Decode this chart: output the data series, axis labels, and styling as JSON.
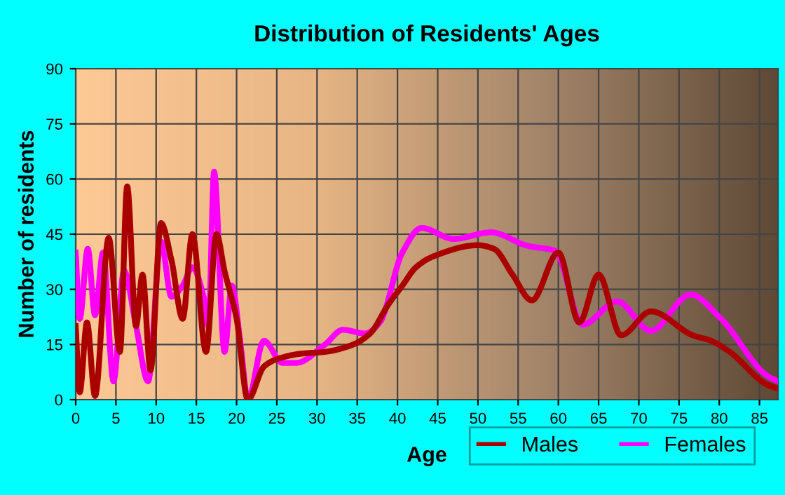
{
  "chart_data": {
    "type": "line",
    "title": "Distribution of Residents' Ages",
    "xlabel": "Age",
    "ylabel": "Number of residents",
    "xlim": [
      0,
      87.3
    ],
    "xticks": [
      0,
      5,
      10,
      15,
      20,
      25,
      30,
      35,
      40,
      45,
      50,
      55,
      60,
      65,
      70,
      75,
      80,
      85
    ],
    "ylim": [
      0,
      90
    ],
    "yticks": [
      0,
      15,
      30,
      45,
      60,
      75,
      90
    ],
    "grid": true,
    "legend": "bottom right",
    "series": [
      {
        "name": "Males",
        "color": "#aa0000",
        "x": [
          0,
          0.5,
          1.4,
          2.4,
          4.1,
          5.5,
          6.4,
          7.5,
          8.3,
          9.3,
          10.6,
          11.9,
          13.3,
          14.5,
          16.2,
          17.5,
          18.5,
          20,
          21.4,
          23.4,
          25,
          28,
          31,
          34.5,
          36.6,
          38.9,
          40.6,
          42.3,
          44.5,
          50,
          52,
          54.3,
          56.7,
          60,
          62.6,
          65,
          67.8,
          71.5,
          76.7,
          79,
          81.3,
          86,
          87.3
        ],
        "values": [
          20,
          2,
          21,
          1,
          44,
          13,
          58,
          20,
          34,
          8,
          48,
          38,
          22,
          45,
          13,
          45,
          35,
          22,
          0,
          9,
          11,
          12.5,
          13,
          15,
          18,
          26,
          31,
          36,
          39,
          42,
          41,
          34,
          27,
          40,
          21,
          34,
          17.5,
          24,
          17.5,
          16,
          13,
          4,
          3
        ]
      },
      {
        "name": "Females",
        "color": "#ff00ff",
        "x": [
          0,
          0.5,
          1.5,
          2.4,
          3.4,
          4.7,
          6,
          7.5,
          9,
          10.6,
          11.9,
          13.3,
          14.5,
          15.9,
          16.5,
          17.2,
          18.5,
          19.4,
          20.5,
          21.4,
          23.4,
          25.7,
          27.4,
          31,
          33.2,
          36,
          37.8,
          40.6,
          43,
          47,
          51.6,
          56.2,
          59.6,
          63,
          67.3,
          71.5,
          76.4,
          80.1,
          86,
          87.3
        ],
        "values": [
          40,
          22,
          41,
          23,
          40,
          5,
          35,
          20,
          5,
          43,
          28,
          31,
          36,
          28,
          20,
          62,
          13,
          31,
          15,
          0,
          16,
          10,
          10,
          15,
          19,
          18,
          21,
          40,
          46.7,
          43.7,
          45.5,
          41.8,
          40.5,
          20.4,
          26.7,
          18.7,
          28.6,
          22.3,
          6.4,
          5
        ]
      }
    ]
  }
}
